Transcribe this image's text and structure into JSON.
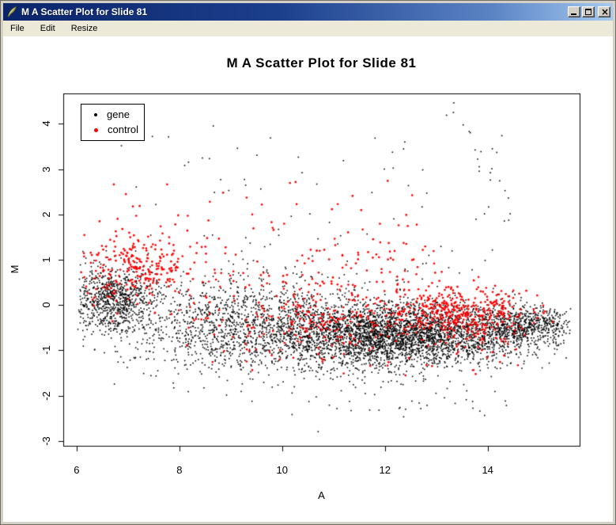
{
  "window": {
    "title": "M A Scatter Plot for Slide 81"
  },
  "icons": {
    "app_icon": "feather-quill",
    "close_glyph": "x"
  },
  "menu": {
    "items": [
      {
        "label": "File"
      },
      {
        "label": "Edit"
      },
      {
        "label": "Resize"
      }
    ]
  },
  "chart_data": {
    "type": "scatter",
    "title": "M A Scatter Plot for Slide 81",
    "xlabel": "A",
    "ylabel": "M",
    "xlim": [
      5.74,
      15.79
    ],
    "ylim": [
      -3.11,
      4.67
    ],
    "xticks": [
      6,
      8,
      10,
      12,
      14
    ],
    "yticks": [
      -3,
      -2,
      -1,
      0,
      1,
      2,
      3,
      4
    ],
    "grid": false,
    "legend_position": "top-left",
    "seed": 81,
    "series": [
      {
        "name": "gene",
        "color": "#000000",
        "marker": "square",
        "marker_px": 1.6,
        "n_total": 6393,
        "clusters": [
          {
            "n": 750,
            "a": {
              "d": "n",
              "m": 6.7,
              "s": 0.42,
              "min": 6.02
            },
            "mv": {
              "d": "n",
              "m": 0.15,
              "s": 0.35
            }
          },
          {
            "n": 1500,
            "a": {
              "d": "n",
              "m": 9.4,
              "s": 1.35,
              "min": 6.1
            },
            "mv": {
              "d": "n",
              "m": -0.42,
              "s": 0.52
            }
          },
          {
            "n": 3300,
            "a": {
              "d": "n",
              "m": 12.25,
              "s": 1.2,
              "max": 15.55
            },
            "mv": {
              "d": "n",
              "m": -0.68,
              "s": 0.34
            }
          },
          {
            "n": 550,
            "a": {
              "d": "n",
              "m": 14.55,
              "s": 0.5,
              "max": 15.6
            },
            "mv": {
              "d": "n",
              "m": -0.5,
              "s": 0.26
            }
          },
          {
            "n": 130,
            "a": {
              "d": "n",
              "m": 15.0,
              "s": 0.33,
              "max": 15.62
            },
            "mv": {
              "d": "n",
              "m": -0.33,
              "s": 0.18
            }
          },
          {
            "n": 75,
            "a": {
              "d": "u",
              "lo": 6.7,
              "hi": 14.4
            },
            "mv": {
              "d": "u",
              "lo": 0.55,
              "hi": 4.0
            }
          },
          {
            "n": 22,
            "streak": {
              "a0": 13.28,
              "a1": 14.42,
              "m0": 4.55,
              "m1": 1.95,
              "ja": 0.12,
              "jm": 0.16
            }
          },
          {
            "n": 65,
            "a": {
              "d": "n",
              "m": 11.7,
              "s": 1.75,
              "min": 7.4,
              "max": 14.9
            },
            "mv": {
              "d": "u",
              "lo": -2.5,
              "hi": -1.3
            }
          },
          {
            "n": 1,
            "a": {
              "d": "u",
              "lo": 10.68,
              "hi": 10.72
            },
            "mv": {
              "d": "u",
              "lo": -2.8,
              "hi": -2.78
            }
          }
        ]
      },
      {
        "name": "control",
        "color": "#ff0000",
        "marker": "circle",
        "marker_px": 2.7,
        "n_total": 1066,
        "clusters": [
          {
            "n": 230,
            "a": {
              "d": "n",
              "m": 7.0,
              "s": 0.58,
              "min": 6.08
            },
            "mv": {
              "d": "n",
              "m": 0.8,
              "s": 0.42
            }
          },
          {
            "n": 150,
            "a": {
              "d": "u",
              "lo": 7.6,
              "hi": 13.2
            },
            "mv": {
              "d": "n",
              "m": 0.85,
              "s": 0.5
            }
          },
          {
            "n": 300,
            "a": {
              "d": "n",
              "m": 11.4,
              "s": 1.5,
              "min": 8.0
            },
            "mv": {
              "d": "n",
              "m": -0.32,
              "s": 0.36
            }
          },
          {
            "n": 330,
            "a": {
              "d": "n",
              "m": 13.6,
              "s": 0.6,
              "max": 15.3
            },
            "mv": {
              "d": "n",
              "m": -0.17,
              "s": 0.3
            }
          },
          {
            "n": 26,
            "a": {
              "d": "u",
              "lo": 6.3,
              "hi": 12.6
            },
            "mv": {
              "d": "u",
              "lo": 1.55,
              "hi": 2.75
            }
          },
          {
            "n": 30,
            "a": {
              "d": "u",
              "lo": 9.2,
              "hi": 14.6
            },
            "mv": {
              "d": "u",
              "lo": -1.75,
              "hi": -0.75
            }
          }
        ]
      }
    ]
  }
}
